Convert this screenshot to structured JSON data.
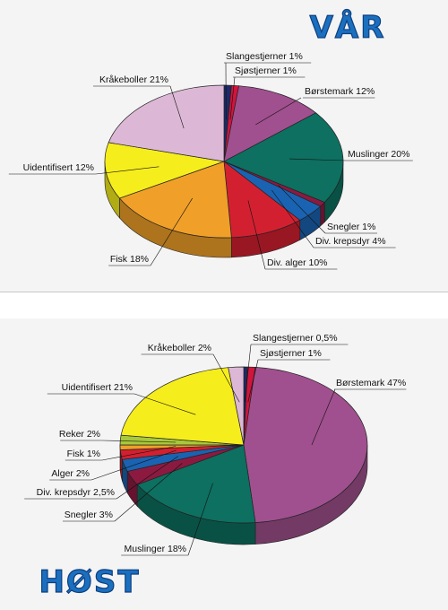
{
  "chart_data": [
    {
      "type": "pie",
      "title": "VÅR",
      "slices": [
        {
          "label": "Slangestjerner 1%",
          "value": 1,
          "color": "#1c2a66"
        },
        {
          "label": "Sjøstjerner 1%",
          "value": 1,
          "color": "#d0143c"
        },
        {
          "label": "Børstemark 12%",
          "value": 12,
          "color": "#a0508e"
        },
        {
          "label": "Muslinger 20%",
          "value": 20,
          "color": "#0d7060"
        },
        {
          "label": "Snegler 1%",
          "value": 1,
          "color": "#8c1a40"
        },
        {
          "label": "Div. krepsdyr 4%",
          "value": 4,
          "color": "#1a63b2"
        },
        {
          "label": "Div. alger 10%",
          "value": 10,
          "color": "#d32030"
        },
        {
          "label": "Fisk 18%",
          "value": 18,
          "color": "#f0a028"
        },
        {
          "label": "Uidentifisert 12%",
          "value": 12,
          "color": "#f6ee1c"
        },
        {
          "label": "Kråkeboller 21%",
          "value": 21,
          "color": "#dcb8d6"
        }
      ]
    },
    {
      "type": "pie",
      "title": "HØST",
      "slices": [
        {
          "label": "Slangestjerner 0,5%",
          "value": 0.5,
          "color": "#1c2a66"
        },
        {
          "label": "Sjøstjerner 1%",
          "value": 1,
          "color": "#d0143c"
        },
        {
          "label": "Børstemark 47%",
          "value": 47,
          "color": "#a0508e"
        },
        {
          "label": "Muslinger 18%",
          "value": 18,
          "color": "#0d7060"
        },
        {
          "label": "Snegler 3%",
          "value": 3,
          "color": "#8c1a40"
        },
        {
          "label": "Div. krepsdyr 2,5%",
          "value": 2.5,
          "color": "#1a63b2"
        },
        {
          "label": "Alger 2%",
          "value": 2,
          "color": "#d32030"
        },
        {
          "label": "Fisk 1%",
          "value": 1,
          "color": "#f0a028"
        },
        {
          "label": "Reker 2%",
          "value": 2,
          "color": "#a8c83c"
        },
        {
          "label": "Uidentifisert 21%",
          "value": 21,
          "color": "#f6ee1c"
        },
        {
          "label": "Kråkeboller 2%",
          "value": 2,
          "color": "#dcb8d6"
        }
      ]
    }
  ]
}
